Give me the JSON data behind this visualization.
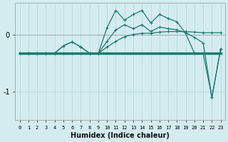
{
  "xlabel": "Humidex (Indice chaleur)",
  "bg_color": "#d4ecf0",
  "grid_color": "#b8d8de",
  "line_color": "#1a7a6e",
  "xlim": [
    -0.5,
    23.5
  ],
  "ylim": [
    -1.5,
    0.55
  ],
  "yticks": [
    -1,
    0
  ],
  "xticks": [
    0,
    1,
    2,
    3,
    4,
    5,
    6,
    7,
    8,
    9,
    10,
    11,
    12,
    13,
    14,
    15,
    16,
    17,
    18,
    19,
    20,
    21,
    22,
    23
  ],
  "line_flat_x": [
    0,
    1,
    2,
    3,
    4,
    5,
    6,
    7,
    8,
    9,
    10,
    11,
    12,
    13,
    14,
    15,
    16,
    17,
    18,
    19,
    20,
    21,
    22,
    23
  ],
  "line_flat_y": [
    -0.33,
    -0.33,
    -0.33,
    -0.33,
    -0.33,
    -0.33,
    -0.33,
    -0.33,
    -0.33,
    -0.33,
    -0.33,
    -0.33,
    -0.33,
    -0.33,
    -0.33,
    -0.33,
    -0.33,
    -0.33,
    -0.33,
    -0.33,
    -0.33,
    -0.33,
    -0.33,
    -0.33
  ],
  "line_rise_x": [
    0,
    1,
    2,
    3,
    4,
    5,
    6,
    7,
    8,
    9,
    10,
    11,
    12,
    13,
    14,
    15,
    16,
    17,
    18,
    19,
    20,
    21,
    22,
    23
  ],
  "line_rise_y": [
    -0.33,
    -0.33,
    -0.33,
    -0.33,
    -0.33,
    -0.33,
    -0.33,
    -0.33,
    -0.33,
    -0.33,
    -0.22,
    -0.12,
    -0.04,
    0.0,
    0.02,
    0.02,
    0.04,
    0.05,
    0.05,
    0.05,
    0.04,
    0.03,
    0.03,
    0.03
  ],
  "line_mid_x": [
    0,
    1,
    2,
    3,
    4,
    5,
    6,
    7,
    8,
    9,
    10,
    11,
    12,
    13,
    14,
    15,
    16,
    17,
    18,
    19,
    20,
    21,
    22,
    23
  ],
  "line_mid_y": [
    -0.33,
    -0.33,
    -0.33,
    -0.33,
    -0.33,
    -0.2,
    -0.13,
    -0.22,
    -0.33,
    -0.33,
    -0.12,
    0.08,
    0.17,
    0.1,
    0.17,
    0.05,
    0.13,
    0.1,
    0.08,
    0.03,
    -0.05,
    -0.15,
    -1.1,
    -0.25
  ],
  "line_main_x": [
    0,
    1,
    2,
    3,
    4,
    5,
    6,
    7,
    8,
    9,
    10,
    11,
    12,
    13,
    14,
    15,
    16,
    17,
    18,
    19,
    20,
    21,
    22,
    23
  ],
  "line_main_y": [
    -0.33,
    -0.33,
    -0.33,
    -0.33,
    -0.33,
    -0.2,
    -0.13,
    -0.22,
    -0.33,
    -0.33,
    0.12,
    0.42,
    0.25,
    0.35,
    0.42,
    0.2,
    0.35,
    0.28,
    0.22,
    0.02,
    -0.33,
    -0.33,
    -1.1,
    -0.25
  ]
}
